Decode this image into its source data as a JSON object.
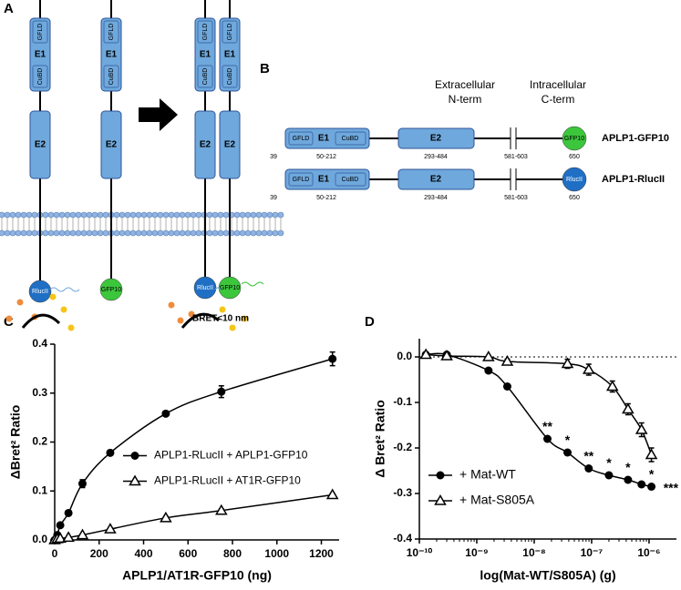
{
  "diagram_a": {
    "label": "A",
    "molecules": [
      {
        "domains": [
          "GFLD",
          "E1",
          "CuBD"
        ],
        "e2": "E2",
        "tag": "RlucII"
      },
      {
        "domains": [
          "GFLD",
          "E1",
          "CuBD"
        ],
        "e2": "E2",
        "tag": "GFP10"
      },
      {
        "domains": [
          "GFLD",
          "E1",
          "CuBD"
        ],
        "e2": "E2",
        "tag": "RlucII"
      },
      {
        "domains": [
          "GFLD",
          "E1",
          "CuBD"
        ],
        "e2": "E2",
        "tag": "GFP10"
      }
    ],
    "note": "BRET<10 nm"
  },
  "diagram_b": {
    "label": "B",
    "regions": [
      [
        "Extracellular",
        "N-term"
      ],
      [
        "Intracellular",
        "C-term"
      ]
    ],
    "constructs": [
      {
        "name": "APLP1-GFP10",
        "domains": [
          "GFLD",
          "E1",
          "CuBD",
          "E2"
        ],
        "tag": "GFP10",
        "positions": [
          "39",
          "50-212",
          "293-484",
          "581-603",
          "650"
        ]
      },
      {
        "name": "APLP1-RlucII",
        "domains": [
          "GFLD",
          "E1",
          "CuBD",
          "E2"
        ],
        "tag": "RlucII",
        "positions": [
          "39",
          "50-212",
          "293-484",
          "581-603",
          "650"
        ]
      }
    ]
  },
  "chart_data": [
    {
      "type": "line",
      "panel": "C",
      "x_label": "APLP1/AT1R-GFP10 (ng)",
      "y_label": "ΔBret² Ratio",
      "xlim": [
        0,
        1280
      ],
      "xticks": [
        0,
        200,
        400,
        600,
        800,
        1000,
        1200
      ],
      "ylim": [
        0,
        0.4
      ],
      "yticks": [
        {
          "value": 0,
          "label": "0.0"
        },
        0.1,
        0.2,
        0.3,
        0.4
      ],
      "legend": "center-right",
      "series": [
        {
          "name": "APLP1-RLucII + APLP1-GFP10",
          "color": "#000000",
          "marker": "circle",
          "x": [
            0,
            12,
            25,
            62,
            125,
            250,
            500,
            750,
            1250
          ],
          "values": [
            0,
            0.01,
            0.03,
            0.055,
            0.115,
            0.178,
            0.258,
            0.303,
            0.37
          ],
          "errors": [
            0,
            0,
            0,
            0.005,
            0.008,
            0.004,
            0.004,
            0.012,
            0.014
          ]
        },
        {
          "name": "APLP1-RLucII + AT1R-GFP10",
          "color": "#000000",
          "marker": "triangle",
          "x": [
            0,
            12,
            25,
            62,
            125,
            250,
            500,
            750,
            1250
          ],
          "values": [
            0,
            0.002,
            0.003,
            0.005,
            0.01,
            0.022,
            0.045,
            0.06,
            0.092
          ],
          "errors": [
            0,
            0,
            0,
            0,
            0,
            0,
            0.003,
            0.003,
            0.003
          ]
        }
      ]
    },
    {
      "type": "line",
      "panel": "D",
      "x_label": "log(Mat-WT/S805A) (g)",
      "y_label": "Δ Bret² Ratio",
      "log_x": true,
      "zero_line": true,
      "xlim": [
        1e-10,
        3e-06
      ],
      "xticks": [
        {
          "value": 1e-10,
          "label": "10⁻¹⁰"
        },
        {
          "value": 1e-09,
          "label": "10⁻⁹"
        },
        {
          "value": 1e-08,
          "label": "10⁻⁸"
        },
        {
          "value": 1e-07,
          "label": "10⁻⁷"
        },
        {
          "value": 1e-06,
          "label": "10⁻⁶"
        }
      ],
      "ylim": [
        -0.4,
        0.04
      ],
      "yticks": [
        {
          "value": 0,
          "label": "0.0"
        },
        -0.1,
        -0.2,
        -0.3,
        -0.4
      ],
      "legend": "bottom-left",
      "series": [
        {
          "name": "+ Mat-WT",
          "color": "#000000",
          "marker": "circle",
          "x": [
            1.3e-10,
            3e-10,
            1.6e-09,
            3.4e-09,
            1.7e-08,
            3.8e-08,
            8.9e-08,
            2e-07,
            4.3e-07,
            7.4e-07,
            1.1e-06
          ],
          "values": [
            0.005,
            0.005,
            -0.03,
            -0.065,
            -0.18,
            -0.21,
            -0.245,
            -0.26,
            -0.27,
            -0.28,
            -0.285
          ],
          "errors": [
            0,
            0,
            0,
            0,
            0,
            0,
            0,
            0,
            0,
            0,
            0
          ]
        },
        {
          "name": "+ Mat-S805A",
          "color": "#000000",
          "marker": "triangle",
          "x": [
            1.3e-10,
            3e-10,
            1.6e-09,
            3.4e-09,
            3.8e-08,
            8.9e-08,
            2.3e-07,
            4.3e-07,
            7.4e-07,
            1.1e-06
          ],
          "values": [
            0.005,
            0.002,
            0.0,
            -0.01,
            -0.015,
            -0.028,
            -0.065,
            -0.115,
            -0.16,
            -0.215
          ],
          "errors": [
            0,
            0,
            0,
            0.005,
            0.01,
            0.012,
            0.012,
            0.012,
            0.015,
            0.015
          ]
        }
      ],
      "annotations": [
        {
          "text": "**",
          "x": 1.7e-08,
          "y": -0.155
        },
        {
          "text": "*",
          "x": 3.8e-08,
          "y": -0.185
        },
        {
          "text": "**",
          "x": 8.9e-08,
          "y": -0.22
        },
        {
          "text": "*",
          "x": 2e-07,
          "y": -0.235
        },
        {
          "text": "*",
          "x": 4.3e-07,
          "y": -0.245
        },
        {
          "text": "*",
          "x": 1.1e-06,
          "y": -0.26
        },
        {
          "text": "***",
          "x": 2.4e-06,
          "y": -0.29
        }
      ]
    }
  ]
}
